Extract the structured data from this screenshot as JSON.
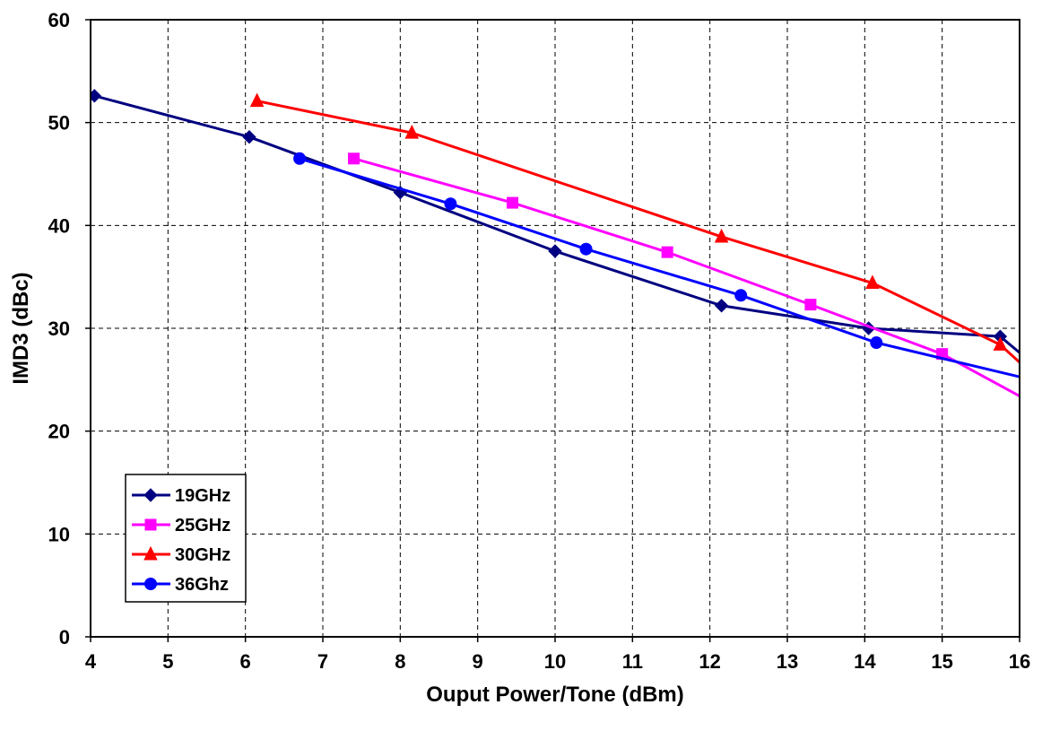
{
  "chart_data": {
    "type": "line",
    "title": "",
    "xlabel": "Ouput Power/Tone (dBm)",
    "ylabel": "IMD3 (dBc)",
    "xlim": [
      4,
      16
    ],
    "ylim": [
      0,
      60
    ],
    "x_ticks": [
      "4",
      "5",
      "6",
      "7",
      "8",
      "9",
      "10",
      "11",
      "12",
      "13",
      "14",
      "15",
      "16"
    ],
    "y_ticks": [
      "0",
      "10",
      "20",
      "30",
      "40",
      "50",
      "60"
    ],
    "grid": true,
    "legend_position": "bottom-left",
    "series": [
      {
        "name": "19GHz",
        "color": "#000080",
        "marker": "diamond",
        "x": [
          4.05,
          6.05,
          8.0,
          10.0,
          12.15,
          14.05,
          15.75
        ],
        "y": [
          52.6,
          48.6,
          43.2,
          37.5,
          32.2,
          30.0,
          29.2
        ],
        "line_end": [
          16.1,
          27.0
        ]
      },
      {
        "name": "25GHz",
        "color": "#FF00FF",
        "marker": "square",
        "x": [
          7.4,
          9.45,
          11.45,
          13.3,
          15.0
        ],
        "y": [
          46.5,
          42.2,
          37.4,
          32.3,
          27.5
        ],
        "line_end": [
          16.1,
          23.0
        ]
      },
      {
        "name": "30GHz",
        "color": "#FF0000",
        "marker": "triangle",
        "x": [
          6.15,
          8.15,
          12.15,
          14.1,
          15.75
        ],
        "y": [
          52.1,
          49.0,
          38.9,
          34.4,
          28.4
        ],
        "line_end": [
          16.1,
          26.0
        ]
      },
      {
        "name": "36Ghz",
        "color": "#0000FF",
        "marker": "circle",
        "x": [
          6.7,
          8.65,
          10.4,
          12.4,
          14.15
        ],
        "y": [
          46.5,
          42.1,
          37.7,
          33.2,
          28.6
        ],
        "line_end": [
          16.1,
          25.1
        ]
      }
    ]
  }
}
